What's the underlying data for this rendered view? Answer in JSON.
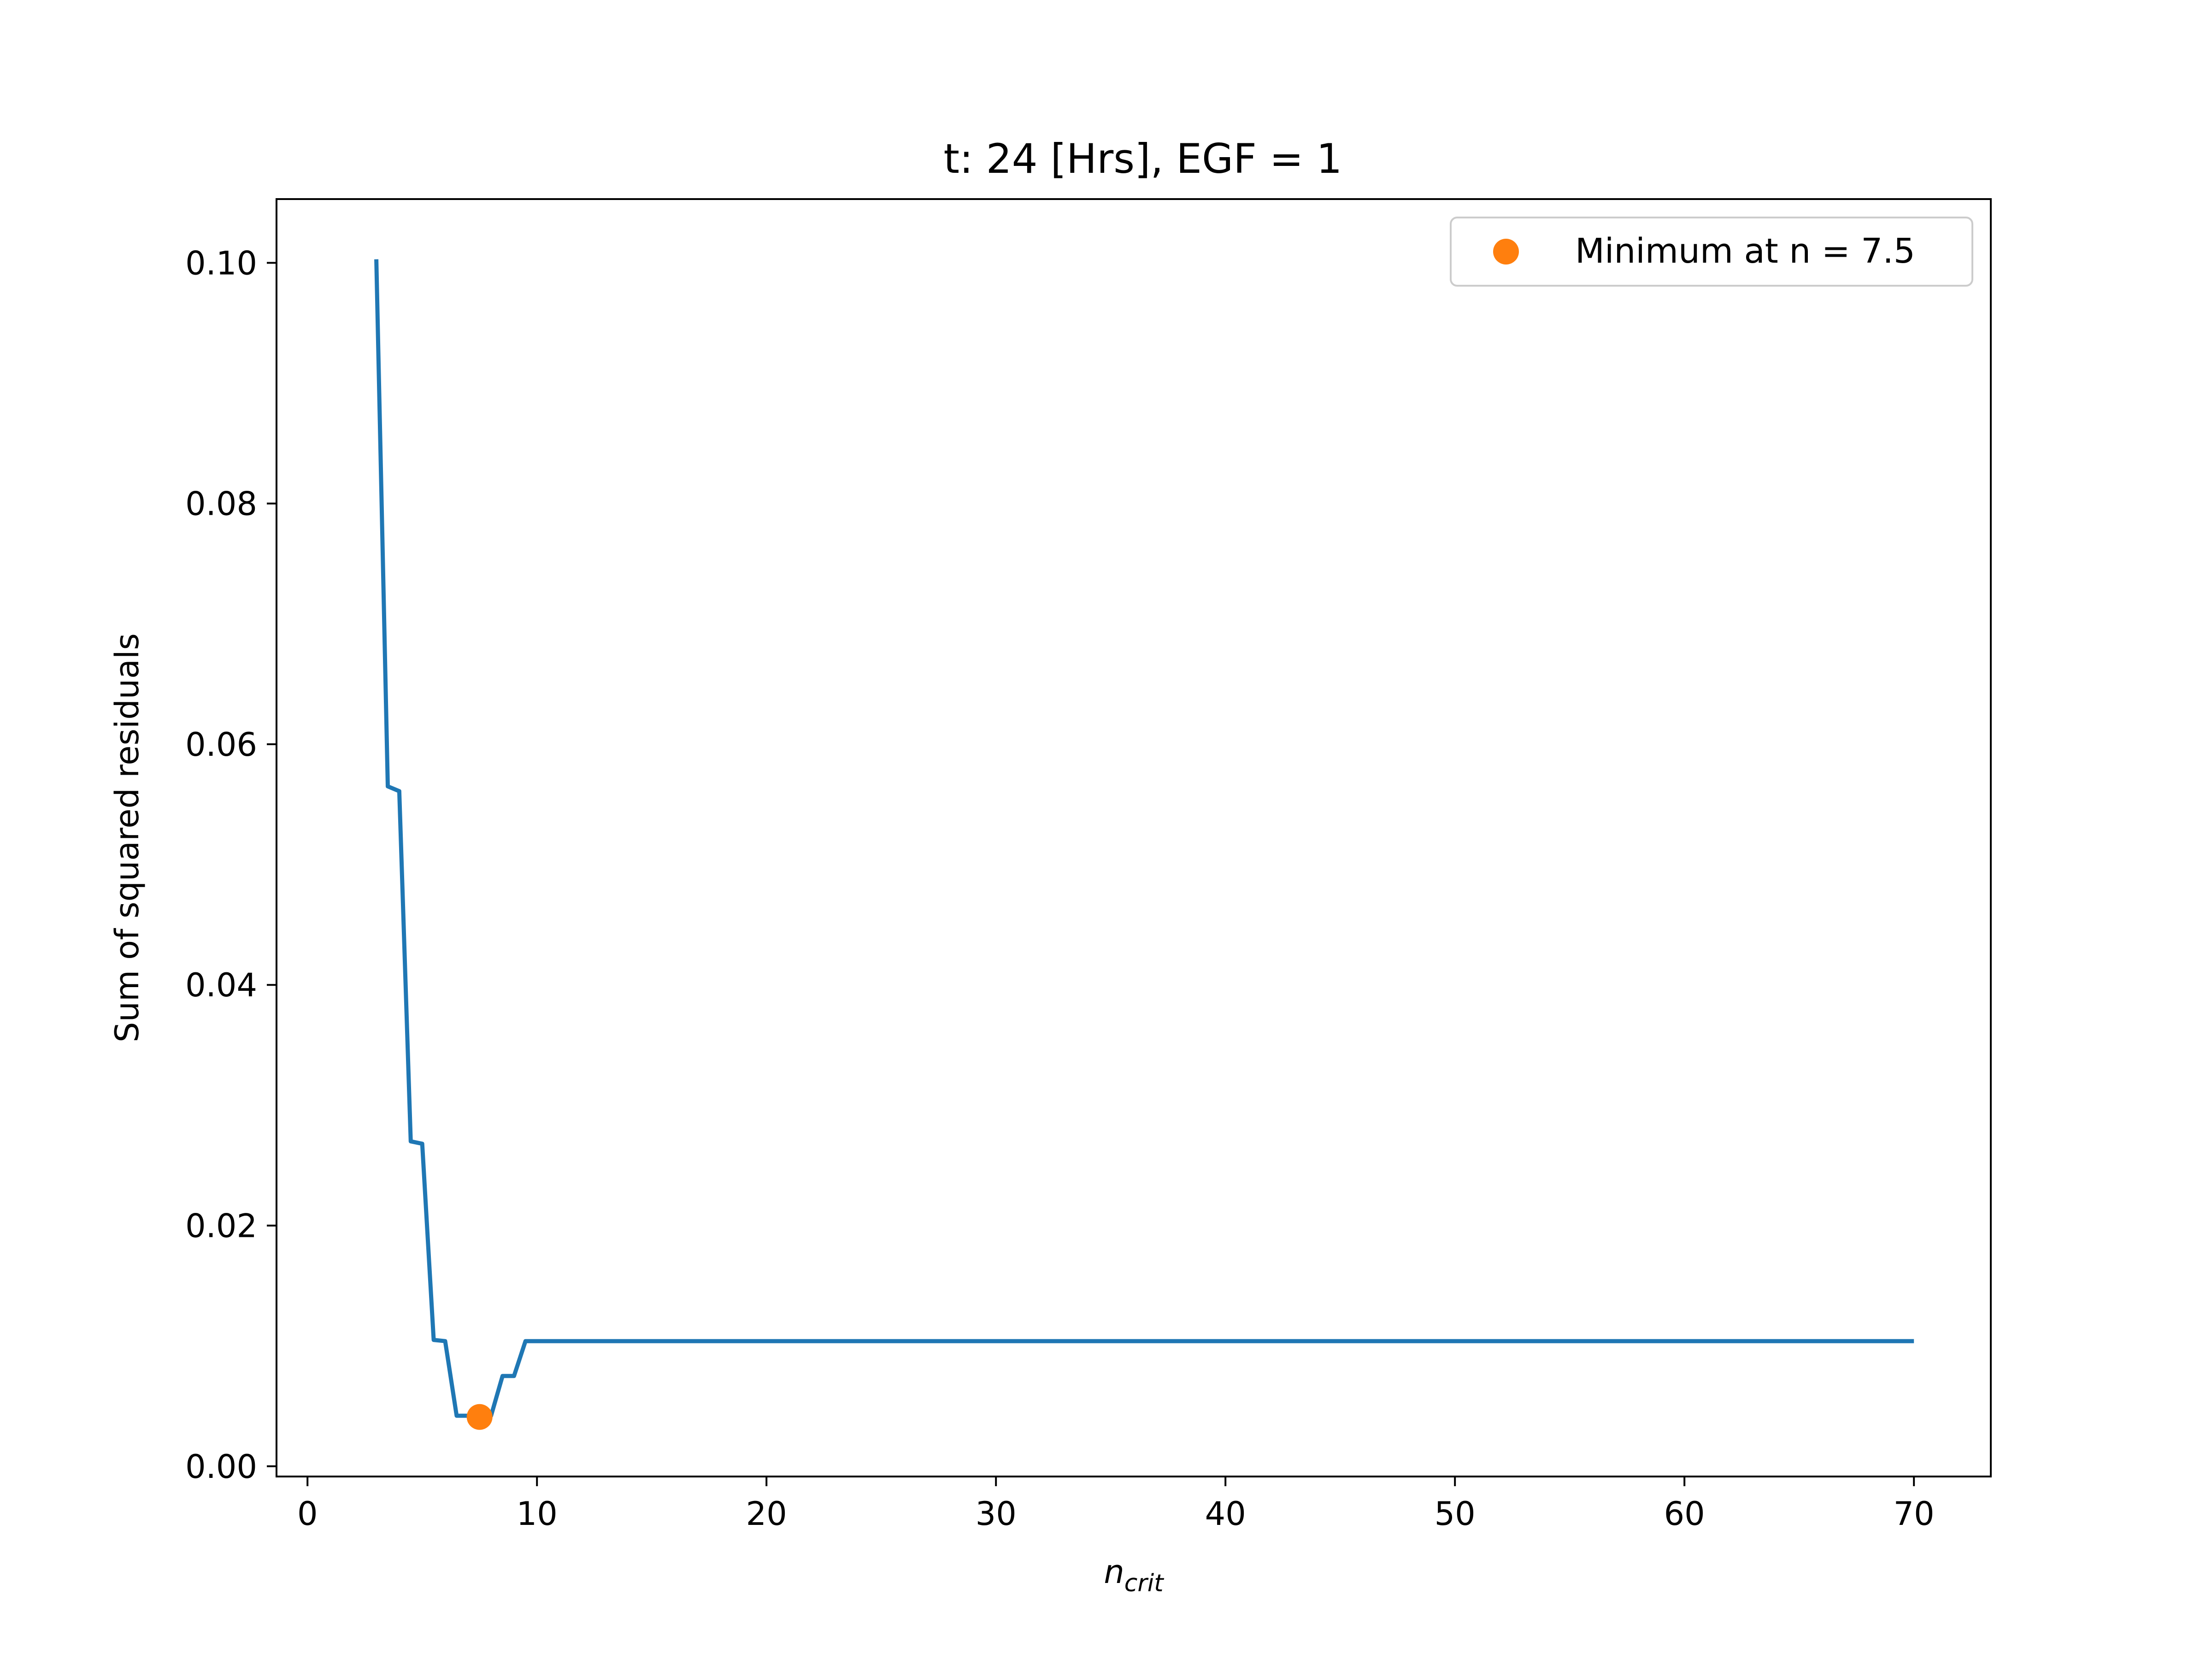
{
  "chart_data": {
    "type": "line",
    "title": "t: 24 [Hrs], EGF = 1",
    "xlabel": {
      "base": "n",
      "subscript": "crit"
    },
    "ylabel": "Sum of squared residuals",
    "xlim": [
      -1.35,
      73.35
    ],
    "ylim": [
      -0.00085,
      0.1053
    ],
    "xticks": [
      0,
      10,
      20,
      30,
      40,
      50,
      60,
      70
    ],
    "xtick_labels": [
      "0",
      "10",
      "20",
      "30",
      "40",
      "50",
      "60",
      "70"
    ],
    "yticks": [
      0.0,
      0.02,
      0.04,
      0.06,
      0.08,
      0.1
    ],
    "ytick_labels": [
      "0.00",
      "0.02",
      "0.04",
      "0.06",
      "0.08",
      "0.10"
    ],
    "grid": false,
    "legend_position": "top-right",
    "series": [
      {
        "kind": "line",
        "color": "#1f77b4",
        "x": [
          3.0,
          3.5,
          4.0,
          4.5,
          5.0,
          5.5,
          6.0,
          6.5,
          7.0,
          7.5,
          8.0,
          8.5,
          9.0,
          9.5,
          10.0,
          70.0
        ],
        "y": [
          0.1003,
          0.0565,
          0.0561,
          0.027,
          0.0268,
          0.0105,
          0.0104,
          0.0042,
          0.0042,
          0.0042,
          0.0042,
          0.0075,
          0.0075,
          0.0104,
          0.0104,
          0.0104
        ]
      },
      {
        "kind": "marker",
        "name": "Minimum at n = 7.5",
        "color": "#ff7f0e",
        "x": [
          7.5
        ],
        "y": [
          0.0041
        ]
      }
    ]
  }
}
